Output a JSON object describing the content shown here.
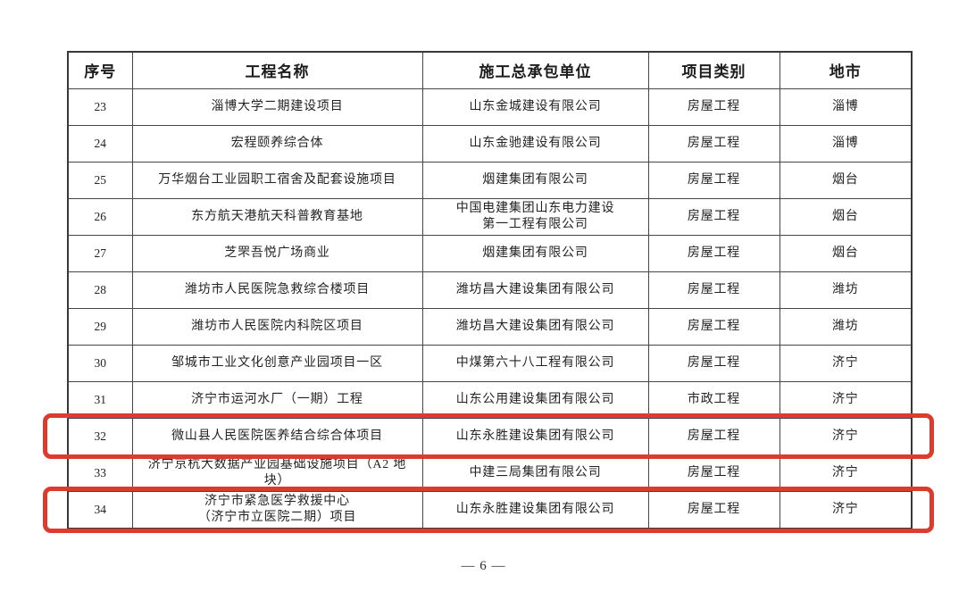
{
  "page": {
    "footer": "— 6 —"
  },
  "colors": {
    "highlight_red": "#dc3b2d",
    "table_border": "#464646",
    "text": "#232323"
  },
  "table": {
    "headers": [
      "序号",
      "工程名称",
      "施工总承包单位",
      "项目类别",
      "地市"
    ],
    "rows": [
      {
        "no": "23",
        "project": "淄博大学二期建设项目",
        "contractor": "山东金城建设有限公司",
        "category": "房屋工程",
        "city": "淄博",
        "highlighted": false
      },
      {
        "no": "24",
        "project": "宏程颐养综合体",
        "contractor": "山东金驰建设有限公司",
        "category": "房屋工程",
        "city": "淄博",
        "highlighted": false
      },
      {
        "no": "25",
        "project": "万华烟台工业园职工宿舍及配套设施项目",
        "contractor": "烟建集团有限公司",
        "category": "房屋工程",
        "city": "烟台",
        "highlighted": false
      },
      {
        "no": "26",
        "project": "东方航天港航天科普教育基地",
        "contractor": "中国电建集团山东电力建设\n第一工程有限公司",
        "category": "房屋工程",
        "city": "烟台",
        "highlighted": false
      },
      {
        "no": "27",
        "project": "芝罘吾悦广场商业",
        "contractor": "烟建集团有限公司",
        "category": "房屋工程",
        "city": "烟台",
        "highlighted": false
      },
      {
        "no": "28",
        "project": "潍坊市人民医院急救综合楼项目",
        "contractor": "潍坊昌大建设集团有限公司",
        "category": "房屋工程",
        "city": "潍坊",
        "highlighted": false
      },
      {
        "no": "29",
        "project": "潍坊市人民医院内科院区项目",
        "contractor": "潍坊昌大建设集团有限公司",
        "category": "房屋工程",
        "city": "潍坊",
        "highlighted": false
      },
      {
        "no": "30",
        "project": "邹城市工业文化创意产业园项目一区",
        "contractor": "中煤第六十八工程有限公司",
        "category": "房屋工程",
        "city": "济宁",
        "highlighted": false
      },
      {
        "no": "31",
        "project": "济宁市运河水厂（一期）工程",
        "contractor": "山东公用建设集团有限公司",
        "category": "市政工程",
        "city": "济宁",
        "highlighted": false
      },
      {
        "no": "32",
        "project": "微山县人民医院医养结合综合体项目",
        "contractor": "山东永胜建设集团有限公司",
        "category": "房屋工程",
        "city": "济宁",
        "highlighted": true
      },
      {
        "no": "33",
        "project": "济宁京杭大数据产业园基础设施项目（A2 地块）",
        "contractor": "中建三局集团有限公司",
        "category": "房屋工程",
        "city": "济宁",
        "highlighted": false
      },
      {
        "no": "34",
        "project": "济宁市紧急医学救援中心\n（济宁市立医院二期）项目",
        "contractor": "山东永胜建设集团有限公司",
        "category": "房屋工程",
        "city": "济宁",
        "highlighted": true
      }
    ]
  }
}
